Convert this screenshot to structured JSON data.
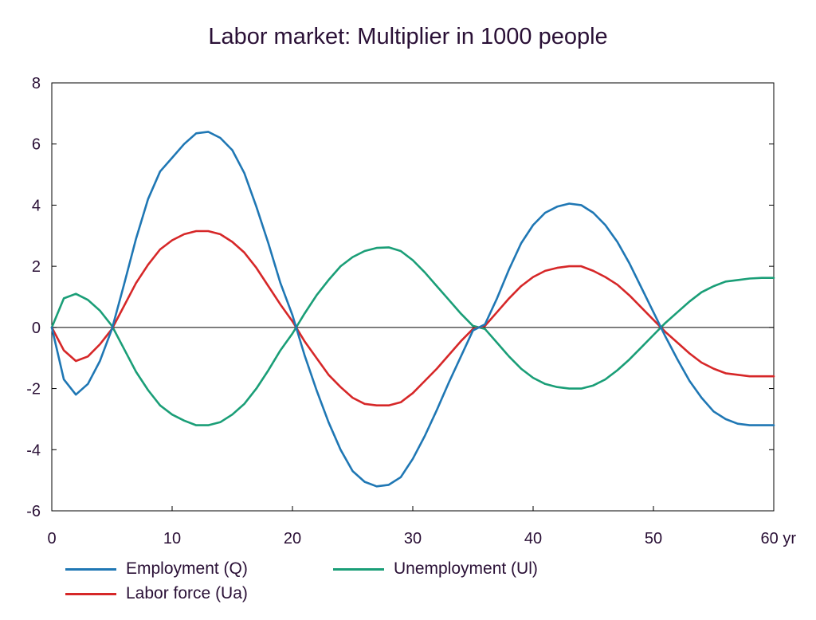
{
  "chart_data": {
    "type": "line",
    "title": "Labor market: Multiplier in 1000 people",
    "x_unit_label": "yr",
    "xlim": [
      0,
      60
    ],
    "ylim": [
      -6,
      8
    ],
    "x_ticks": [
      0,
      10,
      20,
      30,
      40,
      50,
      60
    ],
    "y_ticks": [
      -6,
      -4,
      -2,
      0,
      2,
      4,
      6,
      8
    ],
    "grid": false,
    "legend_position": "bottom",
    "x": [
      0,
      1,
      2,
      3,
      4,
      5,
      6,
      7,
      8,
      9,
      10,
      11,
      12,
      13,
      14,
      15,
      16,
      17,
      18,
      19,
      20,
      21,
      22,
      23,
      24,
      25,
      26,
      27,
      28,
      29,
      30,
      31,
      32,
      33,
      34,
      35,
      36,
      37,
      38,
      39,
      40,
      41,
      42,
      43,
      44,
      45,
      46,
      47,
      48,
      49,
      50,
      51,
      52,
      53,
      54,
      55,
      56,
      57,
      58,
      59,
      60
    ],
    "series": [
      {
        "name": "Employment (Q)",
        "color": "#1f77b4",
        "values": [
          0,
          -1.7,
          -2.2,
          -1.85,
          -1.1,
          -0.05,
          1.4,
          2.9,
          4.2,
          5.1,
          5.55,
          6.0,
          6.35,
          6.4,
          6.2,
          5.8,
          5.05,
          3.95,
          2.75,
          1.45,
          0.4,
          -0.9,
          -2.05,
          -3.1,
          -4.0,
          -4.7,
          -5.05,
          -5.2,
          -5.15,
          -4.9,
          -4.3,
          -3.55,
          -2.7,
          -1.8,
          -0.95,
          -0.1,
          0.1,
          0.95,
          1.9,
          2.75,
          3.35,
          3.75,
          3.95,
          4.05,
          4.0,
          3.75,
          3.35,
          2.8,
          2.1,
          1.3,
          0.5,
          -0.3,
          -1.05,
          -1.75,
          -2.3,
          -2.75,
          -3.0,
          -3.15,
          -3.2,
          -3.2,
          -3.2
        ]
      },
      {
        "name": "Labor force (Ua)",
        "color": "#d62728",
        "values": [
          0,
          -0.75,
          -1.1,
          -0.95,
          -0.55,
          -0.05,
          0.7,
          1.45,
          2.05,
          2.55,
          2.85,
          3.05,
          3.15,
          3.15,
          3.05,
          2.8,
          2.45,
          1.95,
          1.35,
          0.75,
          0.2,
          -0.45,
          -1.0,
          -1.55,
          -1.95,
          -2.3,
          -2.5,
          -2.55,
          -2.55,
          -2.45,
          -2.15,
          -1.75,
          -1.35,
          -0.9,
          -0.45,
          -0.05,
          0.05,
          0.5,
          0.95,
          1.35,
          1.65,
          1.85,
          1.95,
          2.0,
          2.0,
          1.85,
          1.65,
          1.4,
          1.05,
          0.65,
          0.25,
          -0.15,
          -0.5,
          -0.85,
          -1.15,
          -1.35,
          -1.5,
          -1.55,
          -1.6,
          -1.6,
          -1.6
        ]
      },
      {
        "name": "Unemployment (Ul)",
        "color": "#1a9e77",
        "values": [
          0,
          0.95,
          1.1,
          0.9,
          0.55,
          0.05,
          -0.7,
          -1.45,
          -2.05,
          -2.55,
          -2.85,
          -3.05,
          -3.2,
          -3.2,
          -3.1,
          -2.85,
          -2.5,
          -2.0,
          -1.4,
          -0.75,
          -0.2,
          0.45,
          1.05,
          1.55,
          2.0,
          2.3,
          2.5,
          2.6,
          2.62,
          2.5,
          2.2,
          1.8,
          1.35,
          0.9,
          0.45,
          0.05,
          -0.05,
          -0.5,
          -0.95,
          -1.35,
          -1.65,
          -1.85,
          -1.95,
          -2.0,
          -2.0,
          -1.9,
          -1.7,
          -1.4,
          -1.05,
          -0.65,
          -0.25,
          0.15,
          0.5,
          0.85,
          1.15,
          1.35,
          1.5,
          1.55,
          1.6,
          1.62,
          1.62
        ]
      }
    ]
  }
}
